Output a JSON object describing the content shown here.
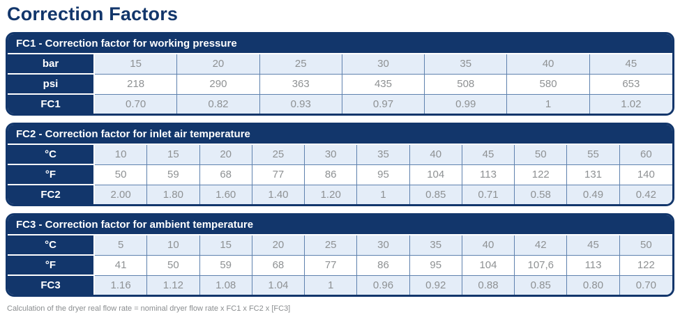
{
  "page_title": "Correction Factors",
  "colors": {
    "navy": "#12366B",
    "light_blue": "#E4EDF8",
    "grid_line": "#5E81AE",
    "cell_text_gray": "#8E9193",
    "footer_text_gray": "#8A8D8F"
  },
  "tables": [
    {
      "title": "FC1 - Correction factor for working pressure",
      "rows": [
        {
          "label": "bar",
          "values": [
            "15",
            "20",
            "25",
            "30",
            "35",
            "40",
            "45"
          ]
        },
        {
          "label": "psi",
          "values": [
            "218",
            "290",
            "363",
            "435",
            "508",
            "580",
            "653"
          ]
        },
        {
          "label": "FC1",
          "values": [
            "0.70",
            "0.82",
            "0.93",
            "0.97",
            "0.99",
            "1",
            "1.02"
          ]
        }
      ]
    },
    {
      "title": "FC2 - Correction factor for inlet air temperature",
      "rows": [
        {
          "label": "°C",
          "values": [
            "10",
            "15",
            "20",
            "25",
            "30",
            "35",
            "40",
            "45",
            "50",
            "55",
            "60"
          ]
        },
        {
          "label": "°F",
          "values": [
            "50",
            "59",
            "68",
            "77",
            "86",
            "95",
            "104",
            "113",
            "122",
            "131",
            "140"
          ]
        },
        {
          "label": "FC2",
          "values": [
            "2.00",
            "1.80",
            "1.60",
            "1.40",
            "1.20",
            "1",
            "0.85",
            "0.71",
            "0.58",
            "0.49",
            "0.42"
          ]
        }
      ]
    },
    {
      "title": "FC3 - Correction factor for ambient temperature",
      "rows": [
        {
          "label": "°C",
          "values": [
            "5",
            "10",
            "15",
            "20",
            "25",
            "30",
            "35",
            "40",
            "42",
            "45",
            "50"
          ]
        },
        {
          "label": "°F",
          "values": [
            "41",
            "50",
            "59",
            "68",
            "77",
            "86",
            "95",
            "104",
            "107,6",
            "113",
            "122"
          ]
        },
        {
          "label": "FC3",
          "values": [
            "1.16",
            "1.12",
            "1.08",
            "1.04",
            "1",
            "0.96",
            "0.92",
            "0.88",
            "0.85",
            "0.80",
            "0.70"
          ]
        }
      ]
    }
  ],
  "footer": "Calculation of the dryer real flow rate = nominal dryer flow rate x FC1 x FC2 x [FC3]"
}
